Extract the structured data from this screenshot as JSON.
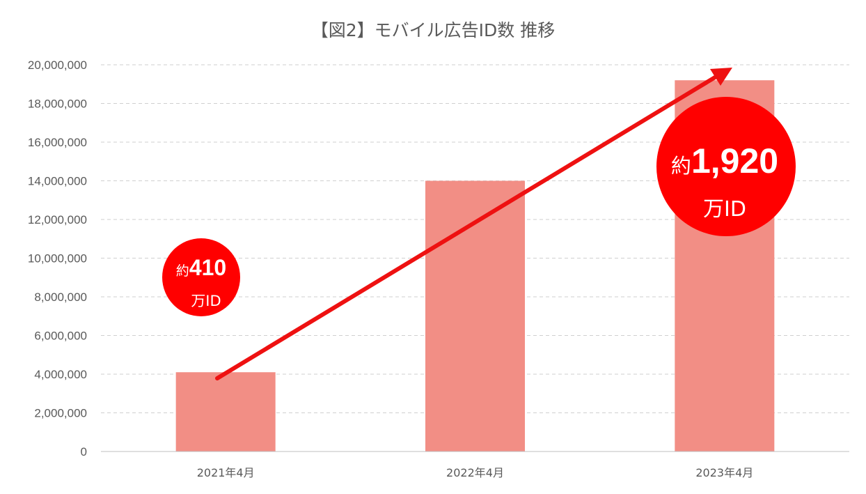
{
  "chart_data": {
    "type": "bar",
    "title": "【図2】モバイル広告ID数 推移",
    "categories": [
      "2021年4月",
      "2022年4月",
      "2023年4月"
    ],
    "values": [
      4100000,
      14000000,
      19200000
    ],
    "ylim": [
      0,
      20000000
    ],
    "yticks": [
      0,
      2000000,
      4000000,
      6000000,
      8000000,
      10000000,
      12000000,
      14000000,
      16000000,
      18000000,
      20000000
    ],
    "ytick_labels": [
      "0",
      "2,000,000",
      "4,000,000",
      "6,000,000",
      "8,000,000",
      "10,000,000",
      "12,000,000",
      "14,000,000",
      "16,000,000",
      "18,000,000",
      "20,000,000"
    ],
    "grid": true,
    "grid_style": "dashed",
    "bar_color": "#f28e85",
    "trend_arrow_color": "#ee1111",
    "callouts": [
      {
        "prefix": "約",
        "value": "410",
        "unit": "万ID",
        "color": "#ff0000"
      },
      {
        "prefix": "約",
        "value": "1,920",
        "unit": "万ID",
        "color": "#ff0000"
      }
    ]
  }
}
